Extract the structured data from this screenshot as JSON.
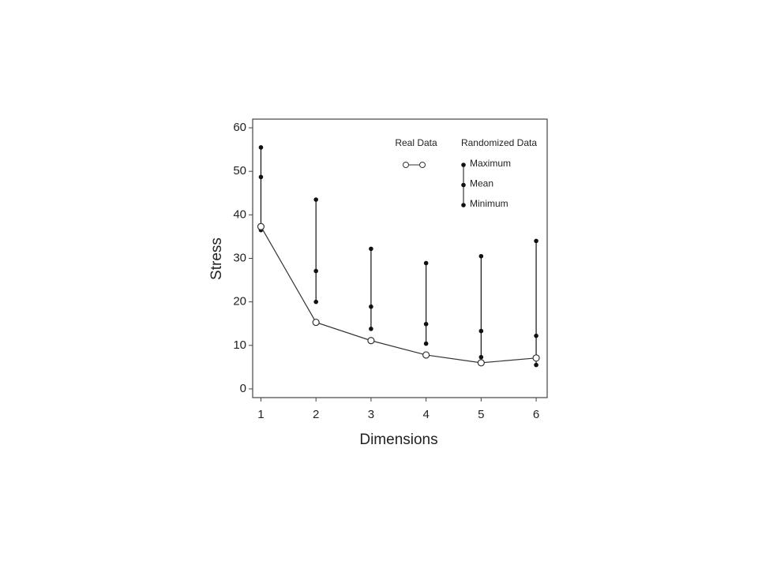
{
  "chart_data": {
    "type": "line",
    "x_label": "Dimensions",
    "y_label": "Stress",
    "x": [
      1,
      2,
      3,
      4,
      5,
      6
    ],
    "series": [
      {
        "name": "Real Data",
        "color": "#333333",
        "values": [
          37.3,
          15.3,
          11.1,
          7.8,
          6.0,
          7.1
        ]
      },
      {
        "name": "Maximum",
        "color": "#111111",
        "values": [
          55.5,
          43.5,
          32.2,
          28.9,
          30.5,
          34.0
        ]
      },
      {
        "name": "Mean",
        "color": "#111111",
        "values": [
          48.7,
          27.1,
          18.9,
          14.9,
          13.3,
          12.2
        ]
      },
      {
        "name": "Minimum",
        "color": "#111111",
        "values": [
          36.5,
          20.0,
          13.8,
          10.4,
          7.3,
          5.5
        ]
      }
    ],
    "randomized_label": "Randomized Data",
    "xlim": [
      0.85,
      6.2
    ],
    "xticks": [
      1,
      2,
      3,
      4,
      5,
      6
    ],
    "ylim": [
      -2,
      62
    ],
    "yticks": [
      0,
      10,
      20,
      30,
      40,
      50,
      60
    ]
  }
}
